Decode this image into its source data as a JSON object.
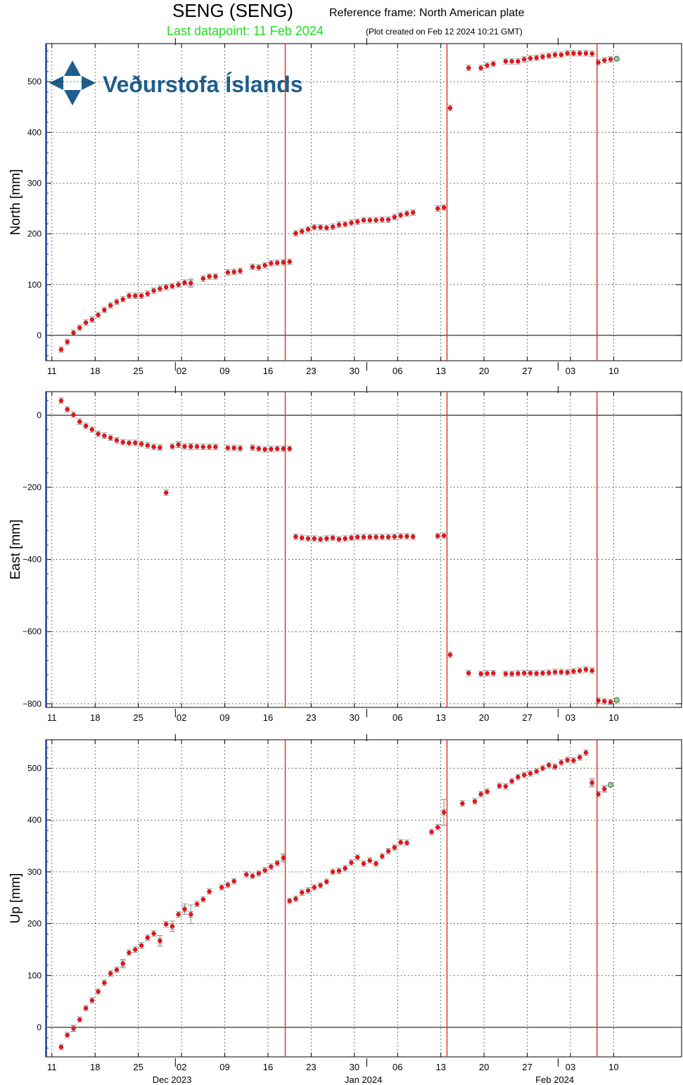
{
  "header": {
    "station": "SENG (SENG)",
    "reference_frame": "Reference frame: North American plate",
    "last_datapoint": "Last datapoint: 11 Feb 2024",
    "plot_created": "(Plot created on Feb 12 2024 10:21 GMT)",
    "last_datapoint_color": "#22dd22"
  },
  "logo": {
    "text": "Veðurstofa Íslands",
    "color": "#1f5e8c"
  },
  "colors": {
    "points": "#e8141b",
    "point_edge": "#8b0000",
    "error_bars": "#888888",
    "event_lines": "#e03a2a",
    "last_point": "#8fd88f",
    "zero_line": "#000000",
    "grid": "#000000",
    "axis_tick": "#1f3fa0"
  },
  "chart_data": [
    {
      "type": "scatter",
      "title": "",
      "ylabel": "North [mm]",
      "xlabel": "",
      "ylim": [
        -50,
        575
      ],
      "yticks": [
        0,
        100,
        200,
        300,
        400,
        500
      ],
      "grid": true,
      "x_unit": "day of period (Nov 11 2023 = 11)",
      "points": [
        [
          12.5,
          -28
        ],
        [
          13.5,
          -13
        ],
        [
          14.5,
          5
        ],
        [
          15.5,
          15
        ],
        [
          16.5,
          25
        ],
        [
          17.5,
          31
        ],
        [
          18.5,
          40
        ],
        [
          19.5,
          50
        ],
        [
          20.5,
          59
        ],
        [
          21.5,
          66
        ],
        [
          22.5,
          71
        ],
        [
          23.5,
          78
        ],
        [
          24.5,
          78
        ],
        [
          25.5,
          78
        ],
        [
          26.5,
          82
        ],
        [
          27.5,
          88
        ],
        [
          28.5,
          92
        ],
        [
          29.5,
          95
        ],
        [
          30.5,
          97
        ],
        [
          31.5,
          100
        ],
        [
          32.5,
          104
        ],
        [
          33.5,
          103
        ],
        [
          35.5,
          112
        ],
        [
          36.5,
          116
        ],
        [
          37.5,
          116
        ],
        [
          39.5,
          124
        ],
        [
          40.5,
          125
        ],
        [
          41.5,
          127
        ],
        [
          43.5,
          135
        ],
        [
          44.5,
          134
        ],
        [
          45.5,
          138
        ],
        [
          46.5,
          142
        ],
        [
          47.5,
          143
        ],
        [
          48.5,
          144
        ],
        [
          49.5,
          145
        ],
        [
          50.5,
          201
        ],
        [
          51.5,
          205
        ],
        [
          52.5,
          209
        ],
        [
          53.5,
          213
        ],
        [
          54.5,
          213
        ],
        [
          55.5,
          212
        ],
        [
          56.5,
          214
        ],
        [
          57.5,
          218
        ],
        [
          58.5,
          219
        ],
        [
          59.5,
          222
        ],
        [
          60.5,
          224
        ],
        [
          61.5,
          227
        ],
        [
          62.5,
          227
        ],
        [
          63.5,
          227
        ],
        [
          64.5,
          228
        ],
        [
          65.5,
          228
        ],
        [
          66.5,
          233
        ],
        [
          67.5,
          237
        ],
        [
          68.5,
          240
        ],
        [
          69.5,
          242
        ],
        [
          73.5,
          250
        ],
        [
          74.5,
          252
        ],
        [
          75.5,
          448
        ],
        [
          78.5,
          527
        ],
        [
          80.5,
          527
        ],
        [
          81.5,
          532
        ],
        [
          82.5,
          535
        ],
        [
          84.5,
          540
        ],
        [
          85.5,
          540
        ],
        [
          86.5,
          540
        ],
        [
          87.5,
          544
        ],
        [
          88.5,
          546
        ],
        [
          89.5,
          547
        ],
        [
          90.5,
          549
        ],
        [
          91.5,
          551
        ],
        [
          92.5,
          553
        ],
        [
          93.5,
          553
        ],
        [
          94.5,
          556
        ],
        [
          95.5,
          556
        ],
        [
          96.5,
          556
        ],
        [
          97.5,
          556
        ],
        [
          98.5,
          555
        ],
        [
          99.5,
          538
        ],
        [
          100.5,
          542
        ],
        [
          101.5,
          544
        ]
      ],
      "errors": [
        [
          33.5,
          8
        ]
      ],
      "last_point": [
        102.5,
        545
      ]
    },
    {
      "type": "scatter",
      "title": "",
      "ylabel": "East [mm]",
      "xlabel": "",
      "ylim": [
        -810,
        65
      ],
      "yticks": [
        -800,
        -600,
        -400,
        -200,
        0
      ],
      "grid": true,
      "x_unit": "day of period (Nov 11 2023 = 11)",
      "points": [
        [
          12.5,
          40
        ],
        [
          13.5,
          16
        ],
        [
          14.5,
          1
        ],
        [
          15.5,
          -18
        ],
        [
          16.5,
          -30
        ],
        [
          17.5,
          -40
        ],
        [
          18.5,
          -52
        ],
        [
          19.5,
          -57
        ],
        [
          20.5,
          -63
        ],
        [
          21.5,
          -70
        ],
        [
          22.5,
          -75
        ],
        [
          23.5,
          -77
        ],
        [
          24.5,
          -77
        ],
        [
          25.5,
          -80
        ],
        [
          26.5,
          -84
        ],
        [
          27.5,
          -88
        ],
        [
          28.5,
          -90
        ],
        [
          29.5,
          -215
        ],
        [
          30.5,
          -87
        ],
        [
          31.5,
          -82
        ],
        [
          32.5,
          -87
        ],
        [
          33.5,
          -87
        ],
        [
          34.5,
          -87
        ],
        [
          35.5,
          -88
        ],
        [
          36.5,
          -88
        ],
        [
          37.5,
          -88
        ],
        [
          39.5,
          -91
        ],
        [
          40.5,
          -91
        ],
        [
          41.5,
          -92
        ],
        [
          43.5,
          -90
        ],
        [
          44.5,
          -93
        ],
        [
          45.5,
          -95
        ],
        [
          46.5,
          -94
        ],
        [
          47.5,
          -93
        ],
        [
          48.5,
          -93
        ],
        [
          49.5,
          -93
        ],
        [
          50.5,
          -337
        ],
        [
          51.5,
          -340
        ],
        [
          52.5,
          -342
        ],
        [
          53.5,
          -342
        ],
        [
          54.5,
          -344
        ],
        [
          55.5,
          -342
        ],
        [
          56.5,
          -340
        ],
        [
          57.5,
          -344
        ],
        [
          58.5,
          -342
        ],
        [
          59.5,
          -340
        ],
        [
          60.5,
          -338
        ],
        [
          61.5,
          -338
        ],
        [
          62.5,
          -338
        ],
        [
          63.5,
          -338
        ],
        [
          64.5,
          -338
        ],
        [
          65.5,
          -338
        ],
        [
          66.5,
          -337
        ],
        [
          67.5,
          -336
        ],
        [
          68.5,
          -336
        ],
        [
          69.5,
          -337
        ],
        [
          73.5,
          -335
        ],
        [
          74.5,
          -334
        ],
        [
          75.5,
          -664
        ],
        [
          78.5,
          -715
        ],
        [
          80.5,
          -717
        ],
        [
          81.5,
          -716
        ],
        [
          82.5,
          -715
        ],
        [
          84.5,
          -717
        ],
        [
          85.5,
          -717
        ],
        [
          86.5,
          -716
        ],
        [
          87.5,
          -715
        ],
        [
          88.5,
          -715
        ],
        [
          89.5,
          -716
        ],
        [
          90.5,
          -715
        ],
        [
          91.5,
          -714
        ],
        [
          92.5,
          -712
        ],
        [
          93.5,
          -712
        ],
        [
          94.5,
          -713
        ],
        [
          95.5,
          -710
        ],
        [
          96.5,
          -708
        ],
        [
          97.5,
          -705
        ],
        [
          98.5,
          -708
        ],
        [
          99.5,
          -791
        ],
        [
          100.5,
          -793
        ],
        [
          101.5,
          -795
        ]
      ],
      "errors": [
        [
          31.5,
          8
        ],
        [
          33.5,
          8
        ]
      ],
      "last_point": [
        102.5,
        -790
      ]
    },
    {
      "type": "scatter",
      "title": "",
      "ylabel": "Up [mm]",
      "xlabel": "",
      "ylim": [
        -57,
        555
      ],
      "yticks": [
        0,
        100,
        200,
        300,
        400,
        500
      ],
      "grid": true,
      "x_unit": "day of period (Nov 11 2023 = 11)",
      "x_sublabels": [
        {
          "label": "Dec 2023",
          "x": 30
        },
        {
          "label": "Jan 2024",
          "x": 61
        },
        {
          "label": "Feb 2024",
          "x": 92
        }
      ],
      "points": [
        [
          12.5,
          -38
        ],
        [
          13.5,
          -15
        ],
        [
          14.5,
          -2
        ],
        [
          15.5,
          15
        ],
        [
          16.5,
          37
        ],
        [
          17.5,
          52
        ],
        [
          18.5,
          69
        ],
        [
          19.5,
          86
        ],
        [
          20.5,
          104
        ],
        [
          21.5,
          111
        ],
        [
          22.5,
          123
        ],
        [
          23.5,
          144
        ],
        [
          24.5,
          150
        ],
        [
          25.5,
          158
        ],
        [
          26.5,
          173
        ],
        [
          27.5,
          181
        ],
        [
          28.5,
          167
        ],
        [
          29.5,
          199
        ],
        [
          30.5,
          195
        ],
        [
          31.5,
          218
        ],
        [
          32.5,
          228
        ],
        [
          33.5,
          218
        ],
        [
          34.5,
          238
        ],
        [
          35.5,
          247
        ],
        [
          36.5,
          262
        ],
        [
          38.5,
          270
        ],
        [
          39.5,
          275
        ],
        [
          40.5,
          282
        ],
        [
          42.5,
          295
        ],
        [
          43.5,
          292
        ],
        [
          44.5,
          297
        ],
        [
          45.5,
          303
        ],
        [
          46.5,
          310
        ],
        [
          47.5,
          317
        ],
        [
          48.5,
          327
        ],
        [
          49.5,
          244
        ],
        [
          50.5,
          248
        ],
        [
          51.5,
          260
        ],
        [
          52.5,
          264
        ],
        [
          53.5,
          270
        ],
        [
          54.5,
          274
        ],
        [
          55.5,
          281
        ],
        [
          56.5,
          300
        ],
        [
          57.5,
          302
        ],
        [
          58.5,
          307
        ],
        [
          59.5,
          318
        ],
        [
          60.5,
          328
        ],
        [
          61.5,
          316
        ],
        [
          62.5,
          322
        ],
        [
          63.5,
          316
        ],
        [
          64.5,
          330
        ],
        [
          65.5,
          340
        ],
        [
          66.5,
          347
        ],
        [
          67.5,
          357
        ],
        [
          68.5,
          356
        ],
        [
          72.5,
          377
        ],
        [
          73.5,
          386
        ],
        [
          74.5,
          415
        ],
        [
          77.5,
          432
        ],
        [
          79.5,
          436
        ],
        [
          80.5,
          450
        ],
        [
          81.5,
          455
        ],
        [
          83.5,
          466
        ],
        [
          84.5,
          465
        ],
        [
          85.5,
          475
        ],
        [
          86.5,
          483
        ],
        [
          87.5,
          487
        ],
        [
          88.5,
          490
        ],
        [
          89.5,
          494
        ],
        [
          90.5,
          500
        ],
        [
          91.5,
          506
        ],
        [
          92.5,
          503
        ],
        [
          93.5,
          511
        ],
        [
          94.5,
          516
        ],
        [
          95.5,
          515
        ],
        [
          96.5,
          521
        ],
        [
          97.5,
          530
        ],
        [
          98.5,
          472
        ],
        [
          99.5,
          450
        ],
        [
          100.5,
          460
        ]
      ],
      "errors": [
        [
          14.5,
          6
        ],
        [
          22.5,
          8
        ],
        [
          28.5,
          10
        ],
        [
          30.5,
          10
        ],
        [
          32.5,
          10
        ],
        [
          33.5,
          18
        ],
        [
          48.5,
          8
        ],
        [
          74.5,
          25
        ],
        [
          98.5,
          8
        ],
        [
          100.5,
          6
        ]
      ],
      "last_point": [
        101.5,
        468
      ]
    }
  ],
  "x_axis": {
    "xlim": [
      10,
      113
    ],
    "ticks": [
      11,
      18,
      25,
      32,
      39,
      46,
      53,
      60,
      67,
      74,
      81,
      88,
      95,
      102
    ],
    "tick_labels": [
      "11",
      "18",
      "25",
      "02",
      "09",
      "16",
      "23",
      "30",
      "06",
      "13",
      "20",
      "27",
      "03",
      "10"
    ],
    "month_boundaries": [
      31,
      62,
      93
    ],
    "event_lines": [
      48.8,
      75.0,
      99.3
    ]
  }
}
